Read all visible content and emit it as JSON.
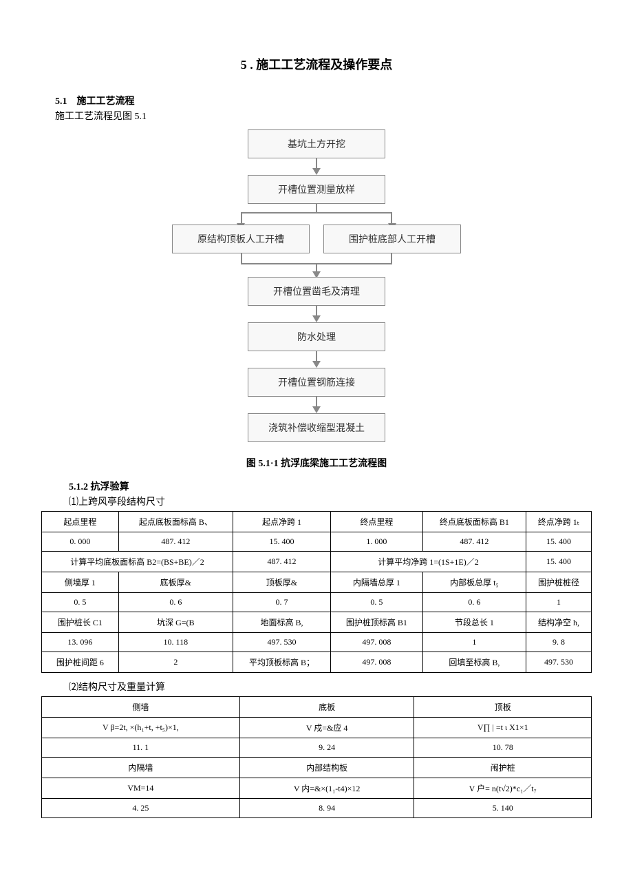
{
  "page_title": "5 . 施工工艺流程及操作要点",
  "section_5_1": {
    "heading": "5.1　施工工艺流程",
    "text": "施工工艺流程见图 5.1"
  },
  "flowchart": {
    "nodes": [
      "基坑土方开挖",
      "开槽位置测量放样",
      "原结构顶板人工开槽",
      "围护桩底部人工开槽",
      "开槽位置凿毛及清理",
      "防水处理",
      "开槽位置钢筋连接",
      "浇筑补偿收缩型混凝土"
    ],
    "node_bg": "#f8f8f8",
    "node_border": "#888888",
    "arrow_color": "#888888"
  },
  "figure_caption": "图 5.1·1 抗浮底梁施工工艺流程图",
  "subsection_5_1_2": {
    "heading": "5.1.2 抗浮验算",
    "item1_label": "⑴上跨风亭段结构尺寸",
    "item2_label": "⑵结构尺寸及重量计算"
  },
  "table1": {
    "rows": [
      [
        "起点里程",
        "起点底板面标高 B、",
        "起点净跨 1",
        "终点里程",
        "终点底板面标高 B1",
        "终点净跨 1ₜ"
      ],
      [
        "0. 000",
        "487. 412",
        "15. 400",
        "1. 000",
        "487. 412",
        "15. 400"
      ],
      [
        "计算平均底板面标高 B2=(BS+BE)／2",
        "487. 412",
        "计算平均净跨 1=(1S+1E)／2",
        "15. 400"
      ],
      [
        "侧墙厚 1",
        "底板厚&",
        "顶板厚&",
        "内隔墙总厚 1",
        "内部板总厚 t₅",
        "围护桩桩径"
      ],
      [
        "0. 5",
        "0. 6",
        "0. 7",
        "0. 5",
        "0. 6",
        "1"
      ],
      [
        "围护桩长 C1",
        "坑深 G=(B",
        "地面标高 B,",
        "围护桩顶标高 B1",
        "节段总长 1",
        "结构净空 h,"
      ],
      [
        "13. 096",
        "10. 118",
        "497. 530",
        "497. 008",
        "1",
        "9. 8"
      ],
      [
        "围护桩间距 6",
        "2",
        "平均顶板标高 B；",
        "497. 008",
        "回填至标高 B,",
        "497. 530"
      ]
    ],
    "row_spans": {
      "2": [
        2,
        1,
        2,
        1
      ]
    }
  },
  "table2": {
    "rows": [
      [
        "侧墙",
        "底板",
        "顶板"
      ],
      [
        "V β=2t, ×(h₁+t, +t₅)×1,",
        "V 戍=&应 4",
        "V∏ | =t ι X1×1"
      ],
      [
        "11. 1",
        "9. 24",
        "10. 78"
      ],
      [
        "内隔墙",
        "内部结构板",
        "闱护桩"
      ],
      [
        "VM=14",
        "V 内=&×(1₁-t4)×12",
        "V 户= n(t√2)*c₁／t₇"
      ],
      [
        "4. 25",
        "8. 94",
        "5. 140"
      ]
    ]
  }
}
